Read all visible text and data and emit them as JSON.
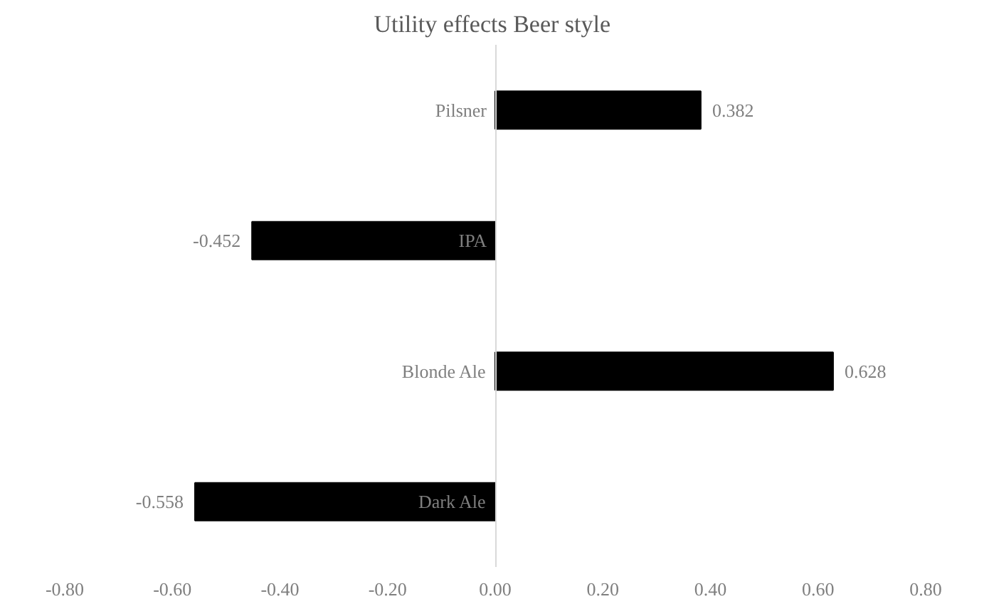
{
  "chart_data": {
    "type": "bar",
    "orientation": "horizontal",
    "title": "Utility  effects Beer style",
    "categories": [
      "Pilsner",
      "IPA",
      "Blonde Ale",
      "Dark Ale"
    ],
    "values": [
      0.382,
      -0.452,
      0.628,
      -0.558
    ],
    "color": "#000000",
    "data_labels": true,
    "grid": false,
    "xlim": [
      -0.8,
      0.8
    ],
    "xticks": [
      {
        "value": -0.8,
        "label": "-0.80"
      },
      {
        "value": -0.6,
        "label": "-0.60"
      },
      {
        "value": -0.4,
        "label": "-0.40"
      },
      {
        "value": -0.2,
        "label": "-0.20"
      },
      {
        "value": 0,
        "label": "0.00"
      },
      {
        "value": 0.2,
        "label": "0.20"
      },
      {
        "value": 0.4,
        "label": "0.40"
      },
      {
        "value": 0.6,
        "label": "0.60"
      },
      {
        "value": 0.8,
        "label": "0.80"
      }
    ]
  }
}
